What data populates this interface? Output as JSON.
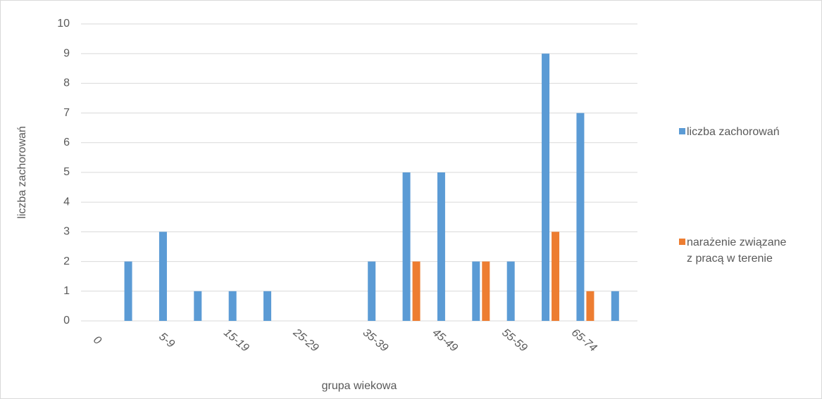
{
  "chart_data": {
    "type": "bar",
    "x_label": "grupa wiekowa",
    "y_label": "liczba zachorowań",
    "categories": [
      "0",
      null,
      "5-9",
      null,
      "15-19",
      null,
      "25-29",
      null,
      "35-39",
      null,
      "45-49",
      null,
      "55-59",
      null,
      "65-74",
      null
    ],
    "series": [
      {
        "name": "liczba zachorowań",
        "color": "#5b9bd5",
        "values": [
          0,
          2,
          3,
          1,
          1,
          1,
          0,
          0,
          2,
          5,
          5,
          2,
          2,
          9,
          7,
          1
        ]
      },
      {
        "name": "narażenie związane z pracą w terenie",
        "color": "#ed7d31",
        "values": [
          0,
          0,
          0,
          0,
          0,
          0,
          0,
          0,
          0,
          2,
          0,
          2,
          0,
          3,
          1,
          0
        ]
      }
    ],
    "ylim": [
      0,
      10
    ],
    "yticks": [
      0,
      1,
      2,
      3,
      4,
      5,
      6,
      7,
      8,
      9,
      10
    ],
    "grid": true,
    "legend": "right"
  }
}
